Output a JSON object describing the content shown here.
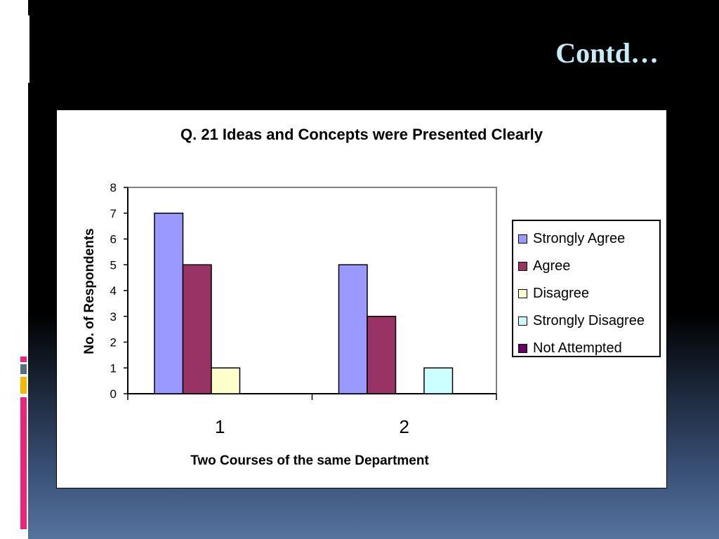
{
  "slide": {
    "title": "Contd…"
  },
  "chart_data": {
    "type": "bar",
    "title": "Q. 21 Ideas and Concepts were Presented Clearly",
    "xlabel": "Two Courses of the same Department",
    "ylabel": "No. of Respondents",
    "categories": [
      "1",
      "2"
    ],
    "ylim": [
      0,
      8
    ],
    "yticks": [
      0,
      1,
      2,
      3,
      4,
      5,
      6,
      7,
      8
    ],
    "grid": false,
    "legend_position": "right",
    "series": [
      {
        "name": "Strongly Agree",
        "color": "#9999ff",
        "values": [
          7,
          5
        ]
      },
      {
        "name": "Agree",
        "color": "#993366",
        "values": [
          5,
          3
        ]
      },
      {
        "name": "Disagree",
        "color": "#ffffcc",
        "values": [
          1,
          0
        ]
      },
      {
        "name": "Strongly Disagree",
        "color": "#ccffff",
        "values": [
          0,
          1
        ]
      },
      {
        "name": "Not Attempted",
        "color": "#660066",
        "values": [
          0,
          0
        ]
      }
    ]
  }
}
